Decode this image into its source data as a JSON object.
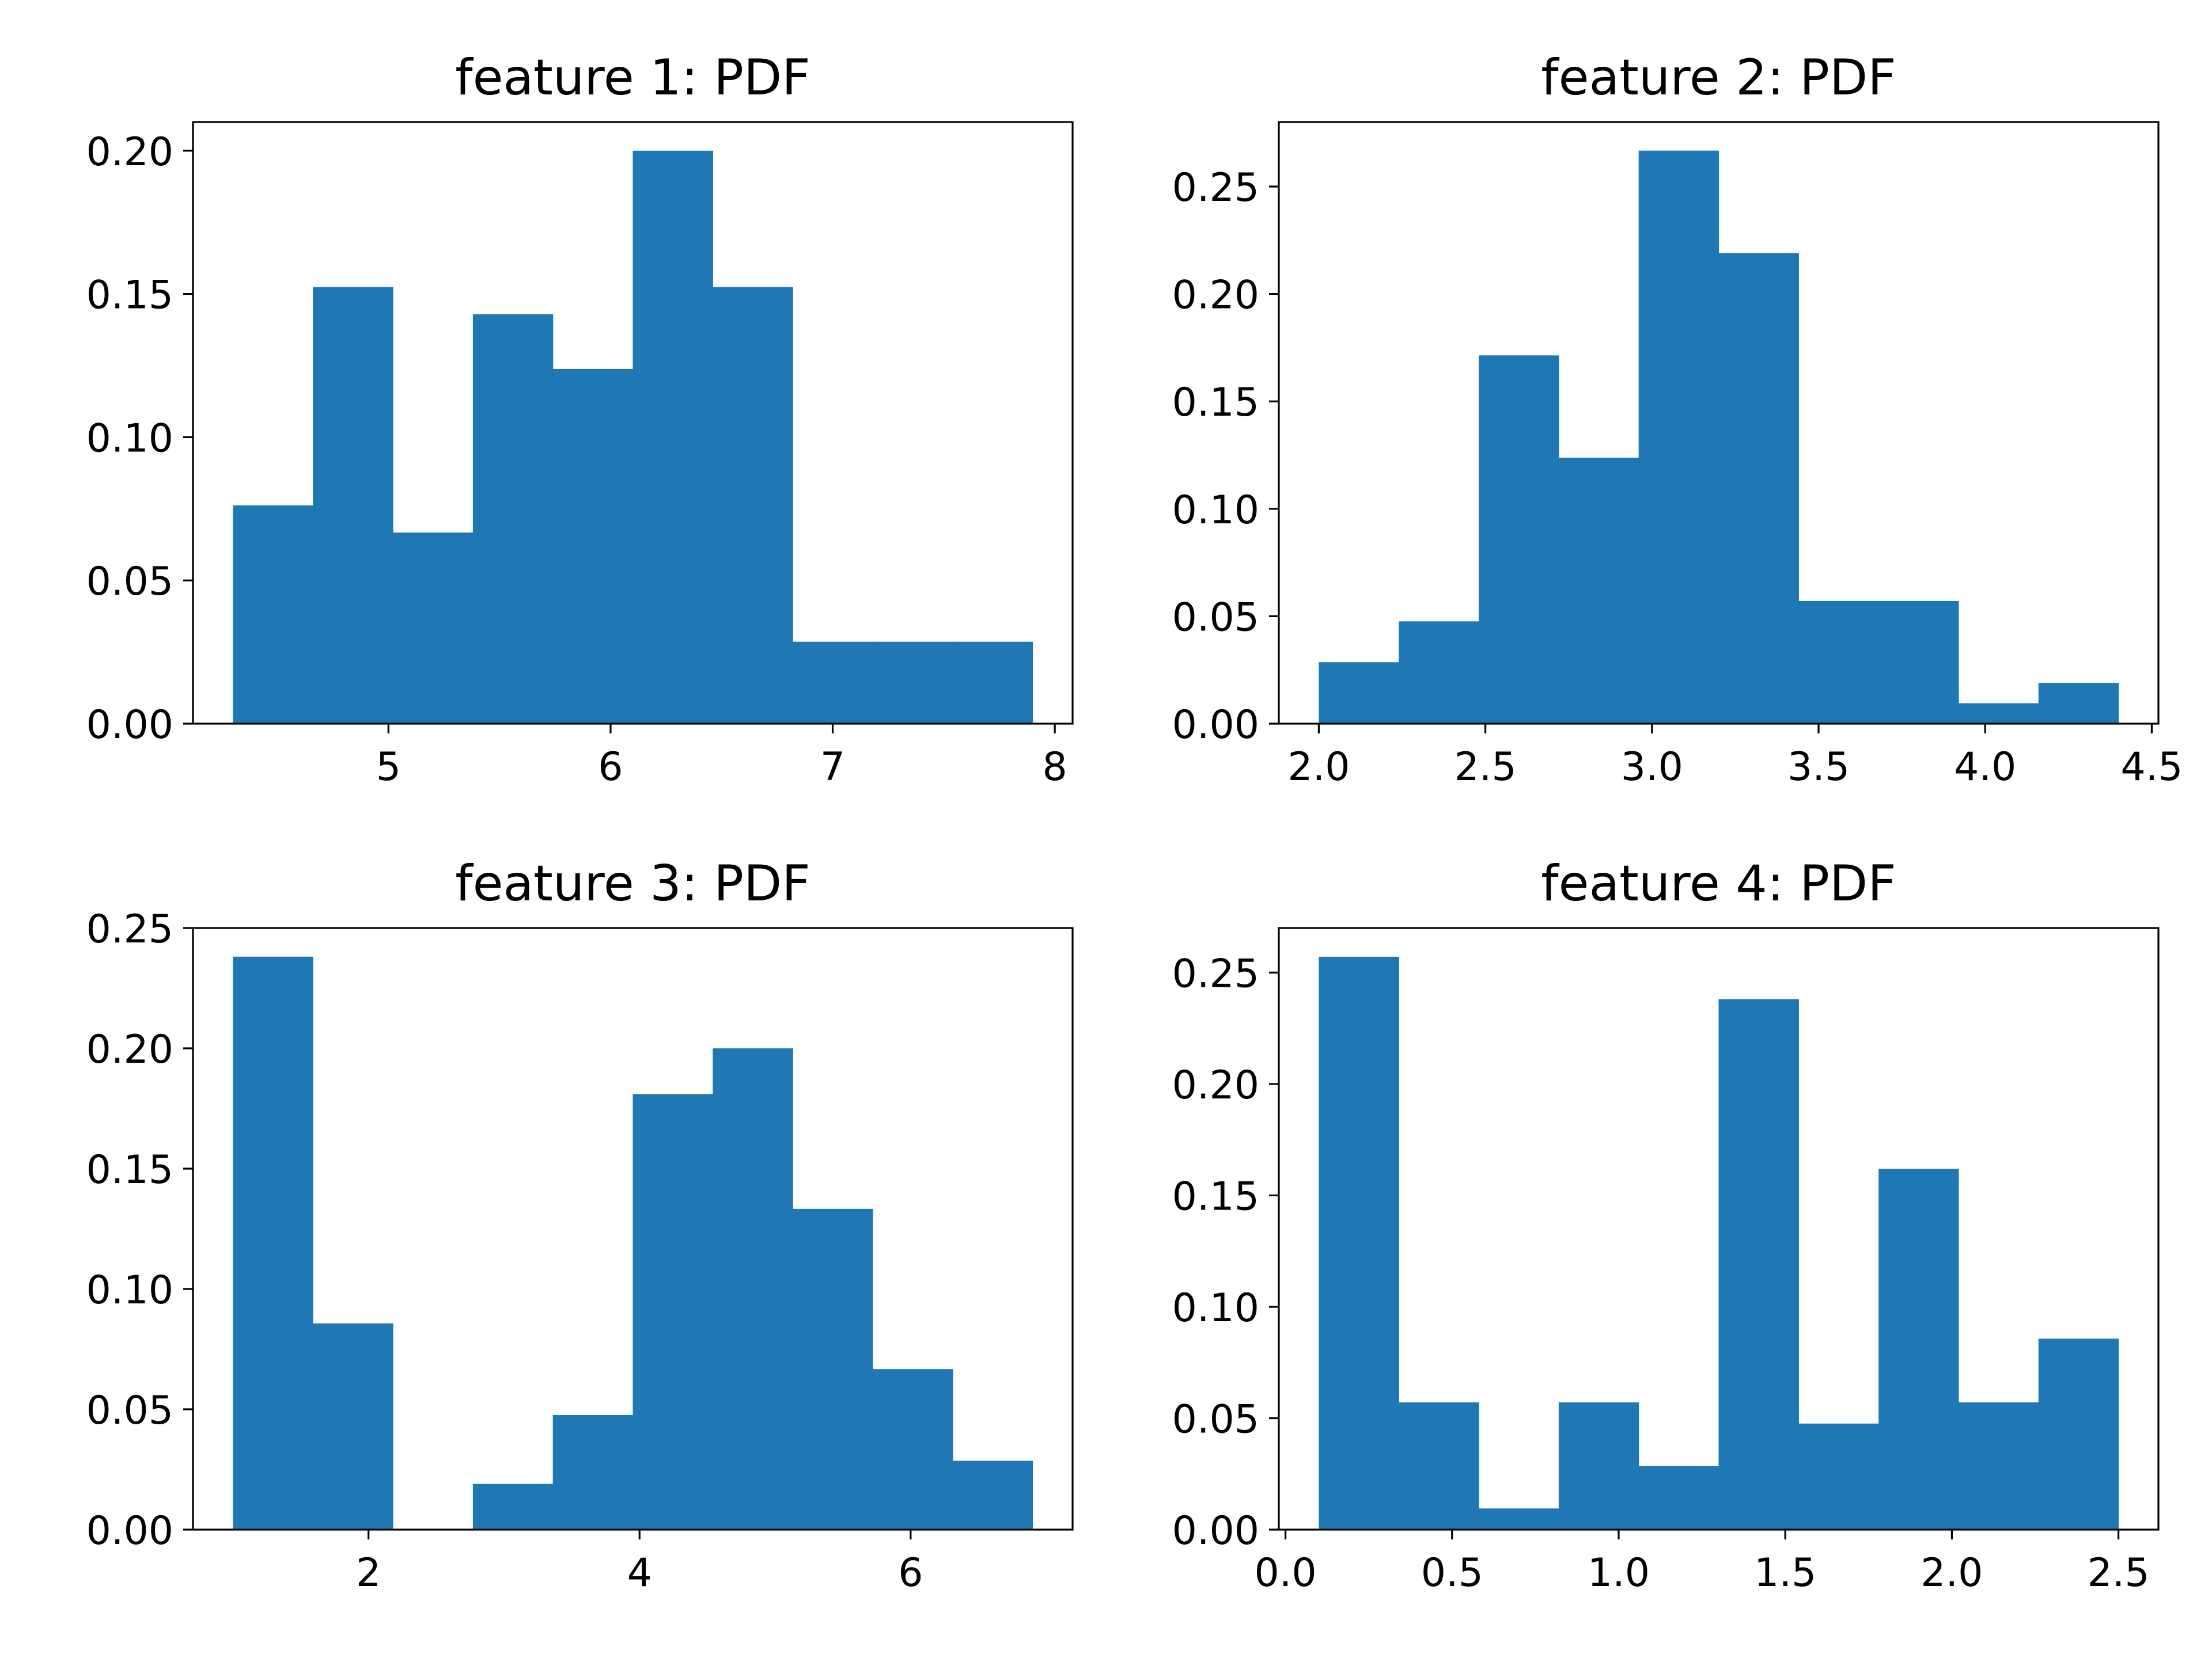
{
  "chart_data": [
    {
      "type": "bar",
      "subtype": "histogram",
      "title": "feature 1: PDF",
      "xlabel": "",
      "ylabel": "",
      "bin_edges": [
        4.3,
        4.66,
        5.02,
        5.38,
        5.74,
        6.1,
        6.46,
        6.82,
        7.18,
        7.54,
        7.9
      ],
      "values": [
        0.0762,
        0.1524,
        0.0667,
        0.1429,
        0.1238,
        0.2,
        0.1524,
        0.0286,
        0.0286,
        0.0286
      ],
      "xlim": [
        4.12,
        8.08
      ],
      "ylim": [
        0,
        0.21
      ],
      "xticks": [
        5,
        6,
        7,
        8
      ],
      "xtick_labels": [
        "5",
        "6",
        "7",
        "8"
      ],
      "yticks": [
        0,
        0.05,
        0.1,
        0.15,
        0.2
      ],
      "ytick_labels": [
        "0.00",
        "0.05",
        "0.10",
        "0.15",
        "0.20"
      ],
      "color": "#1f77b4",
      "grid": false
    },
    {
      "type": "bar",
      "subtype": "histogram",
      "title": "feature 2: PDF",
      "xlabel": "",
      "ylabel": "",
      "bin_edges": [
        2.0,
        2.24,
        2.48,
        2.72,
        2.96,
        3.2,
        3.44,
        3.68,
        3.92,
        4.16,
        4.4
      ],
      "values": [
        0.0286,
        0.0476,
        0.1714,
        0.1238,
        0.2667,
        0.219,
        0.0571,
        0.0571,
        0.0095,
        0.019
      ],
      "xlim": [
        1.88,
        4.52
      ],
      "ylim": [
        0,
        0.28
      ],
      "xticks": [
        2.0,
        2.5,
        3.0,
        3.5,
        4.0,
        4.5
      ],
      "xtick_labels": [
        "2.0",
        "2.5",
        "3.0",
        "3.5",
        "4.0",
        "4.5"
      ],
      "yticks": [
        0,
        0.05,
        0.1,
        0.15,
        0.2,
        0.25
      ],
      "ytick_labels": [
        "0.00",
        "0.05",
        "0.10",
        "0.15",
        "0.20",
        "0.25"
      ],
      "color": "#1f77b4",
      "grid": false
    },
    {
      "type": "bar",
      "subtype": "histogram",
      "title": "feature 3: PDF",
      "xlabel": "",
      "ylabel": "",
      "bin_edges": [
        1.0,
        1.59,
        2.18,
        2.77,
        3.36,
        3.95,
        4.54,
        5.13,
        5.72,
        6.31,
        6.9
      ],
      "values": [
        0.2381,
        0.0857,
        0.0,
        0.019,
        0.0476,
        0.181,
        0.2,
        0.1333,
        0.0667,
        0.0286
      ],
      "xlim": [
        0.705,
        7.195
      ],
      "ylim": [
        0,
        0.25
      ],
      "xticks": [
        2,
        4,
        6
      ],
      "xtick_labels": [
        "2",
        "4",
        "6"
      ],
      "yticks": [
        0,
        0.05,
        0.1,
        0.15,
        0.2,
        0.25
      ],
      "ytick_labels": [
        "0.00",
        "0.05",
        "0.10",
        "0.15",
        "0.20",
        "0.25"
      ],
      "color": "#1f77b4",
      "grid": false
    },
    {
      "type": "bar",
      "subtype": "histogram",
      "title": "feature 4: PDF",
      "xlabel": "",
      "ylabel": "",
      "bin_edges": [
        0.1,
        0.34,
        0.58,
        0.82,
        1.06,
        1.3,
        1.54,
        1.78,
        2.02,
        2.26,
        2.5
      ],
      "values": [
        0.2571,
        0.0571,
        0.0095,
        0.0571,
        0.0286,
        0.2381,
        0.0476,
        0.1619,
        0.0571,
        0.0857
      ],
      "xlim": [
        -0.02,
        2.62
      ],
      "ylim": [
        0,
        0.27
      ],
      "xticks": [
        0.0,
        0.5,
        1.0,
        1.5,
        2.0,
        2.5
      ],
      "xtick_labels": [
        "0.0",
        "0.5",
        "1.0",
        "1.5",
        "2.0",
        "2.5"
      ],
      "yticks": [
        0,
        0.05,
        0.1,
        0.15,
        0.2,
        0.25
      ],
      "ytick_labels": [
        "0.00",
        "0.05",
        "0.10",
        "0.15",
        "0.20",
        "0.25"
      ],
      "color": "#1f77b4",
      "grid": false
    }
  ]
}
